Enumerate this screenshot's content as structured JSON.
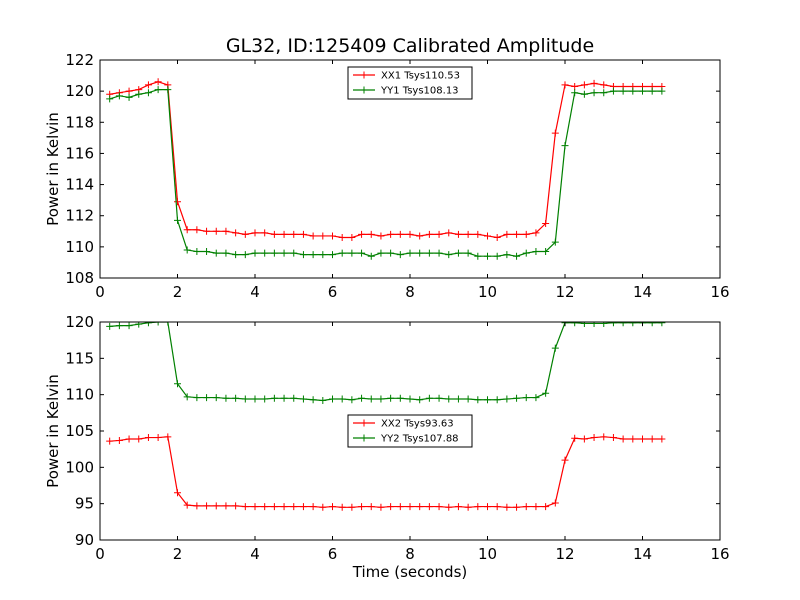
{
  "chart_data": [
    {
      "type": "line",
      "title": "GL32, ID:125409 Calibrated Amplitude",
      "xlabel": "",
      "ylabel": "Power in Kelvin",
      "xlim": [
        0,
        16
      ],
      "ylim": [
        108,
        122
      ],
      "xticks": [
        "0",
        "2",
        "4",
        "6",
        "8",
        "10",
        "12",
        "14",
        "16"
      ],
      "yticks": [
        "108",
        "110",
        "112",
        "114",
        "116",
        "118",
        "120",
        "122"
      ],
      "grid": false,
      "legend_position": "top-center",
      "x": [
        0.25,
        0.5,
        0.75,
        1.0,
        1.25,
        1.5,
        1.75,
        2.0,
        2.25,
        2.5,
        2.75,
        3.0,
        3.25,
        3.5,
        3.75,
        4.0,
        4.25,
        4.5,
        4.75,
        5.0,
        5.25,
        5.5,
        5.75,
        6.0,
        6.25,
        6.5,
        6.75,
        7.0,
        7.25,
        7.5,
        7.75,
        8.0,
        8.25,
        8.5,
        8.75,
        9.0,
        9.25,
        9.5,
        9.75,
        10.0,
        10.25,
        10.5,
        10.75,
        11.0,
        11.25,
        11.5,
        11.75,
        12.0,
        12.25,
        12.5,
        12.75,
        13.0,
        13.25,
        13.5,
        13.75,
        14.0,
        14.25,
        14.5
      ],
      "series": [
        {
          "name": "XX1 Tsys110.53",
          "color": "#ff0000",
          "values": [
            119.8,
            119.9,
            120.0,
            120.1,
            120.4,
            120.6,
            120.4,
            112.9,
            111.1,
            111.1,
            111.0,
            111.0,
            111.0,
            110.9,
            110.8,
            110.9,
            110.9,
            110.8,
            110.8,
            110.8,
            110.8,
            110.7,
            110.7,
            110.7,
            110.6,
            110.6,
            110.8,
            110.8,
            110.7,
            110.8,
            110.8,
            110.8,
            110.7,
            110.8,
            110.8,
            110.9,
            110.8,
            110.8,
            110.8,
            110.7,
            110.6,
            110.8,
            110.8,
            110.8,
            110.9,
            111.5,
            117.3,
            120.4,
            120.3,
            120.4,
            120.5,
            120.4,
            120.3,
            120.3,
            120.3,
            120.3,
            120.3,
            120.3
          ]
        },
        {
          "name": "YY1 Tsys108.13",
          "color": "#008000",
          "values": [
            119.5,
            119.7,
            119.6,
            119.8,
            119.9,
            120.1,
            120.1,
            111.7,
            109.8,
            109.7,
            109.7,
            109.6,
            109.6,
            109.5,
            109.5,
            109.6,
            109.6,
            109.6,
            109.6,
            109.6,
            109.5,
            109.5,
            109.5,
            109.5,
            109.6,
            109.6,
            109.6,
            109.4,
            109.6,
            109.6,
            109.5,
            109.6,
            109.6,
            109.6,
            109.6,
            109.5,
            109.6,
            109.6,
            109.4,
            109.4,
            109.4,
            109.5,
            109.4,
            109.6,
            109.7,
            109.7,
            110.3,
            116.5,
            119.9,
            119.8,
            119.9,
            119.9,
            120.0,
            120.0,
            120.0,
            120.0,
            120.0,
            120.0
          ]
        }
      ]
    },
    {
      "type": "line",
      "title": "",
      "xlabel": "Time (seconds)",
      "ylabel": "Power in Kelvin",
      "xlim": [
        0,
        16
      ],
      "ylim": [
        90,
        120
      ],
      "xticks": [
        "0",
        "2",
        "4",
        "6",
        "8",
        "10",
        "12",
        "14",
        "16"
      ],
      "yticks": [
        "90",
        "95",
        "100",
        "105",
        "110",
        "115",
        "120"
      ],
      "grid": false,
      "legend_position": "center",
      "x": [
        0.25,
        0.5,
        0.75,
        1.0,
        1.25,
        1.5,
        1.75,
        2.0,
        2.25,
        2.5,
        2.75,
        3.0,
        3.25,
        3.5,
        3.75,
        4.0,
        4.25,
        4.5,
        4.75,
        5.0,
        5.25,
        5.5,
        5.75,
        6.0,
        6.25,
        6.5,
        6.75,
        7.0,
        7.25,
        7.5,
        7.75,
        8.0,
        8.25,
        8.5,
        8.75,
        9.0,
        9.25,
        9.5,
        9.75,
        10.0,
        10.25,
        10.5,
        10.75,
        11.0,
        11.25,
        11.5,
        11.75,
        12.0,
        12.25,
        12.5,
        12.75,
        13.0,
        13.25,
        13.5,
        13.75,
        14.0,
        14.25,
        14.5
      ],
      "series": [
        {
          "name": "XX2 Tsys93.63",
          "color": "#ff0000",
          "values": [
            103.6,
            103.7,
            103.9,
            103.9,
            104.1,
            104.1,
            104.2,
            96.5,
            94.8,
            94.7,
            94.7,
            94.7,
            94.7,
            94.7,
            94.6,
            94.6,
            94.6,
            94.6,
            94.6,
            94.6,
            94.6,
            94.6,
            94.5,
            94.6,
            94.5,
            94.5,
            94.6,
            94.6,
            94.5,
            94.6,
            94.6,
            94.6,
            94.6,
            94.6,
            94.6,
            94.5,
            94.6,
            94.5,
            94.6,
            94.6,
            94.6,
            94.5,
            94.5,
            94.6,
            94.6,
            94.6,
            95.1,
            101.0,
            104.0,
            103.9,
            104.1,
            104.2,
            104.1,
            103.9,
            103.9,
            103.9,
            103.9,
            103.9
          ]
        },
        {
          "name": "YY2 Tsys107.88",
          "color": "#008000",
          "values": [
            119.4,
            119.5,
            119.5,
            119.7,
            119.9,
            120.0,
            120.0,
            111.5,
            109.7,
            109.6,
            109.6,
            109.6,
            109.5,
            109.5,
            109.4,
            109.4,
            109.4,
            109.5,
            109.5,
            109.5,
            109.4,
            109.3,
            109.2,
            109.4,
            109.4,
            109.3,
            109.5,
            109.4,
            109.4,
            109.5,
            109.5,
            109.4,
            109.3,
            109.5,
            109.5,
            109.4,
            109.4,
            109.4,
            109.3,
            109.3,
            109.3,
            109.4,
            109.5,
            109.6,
            109.6,
            110.2,
            116.4,
            119.9,
            119.9,
            119.8,
            119.8,
            119.8,
            119.9,
            119.9,
            119.9,
            119.9,
            119.9,
            119.9
          ]
        }
      ]
    }
  ]
}
